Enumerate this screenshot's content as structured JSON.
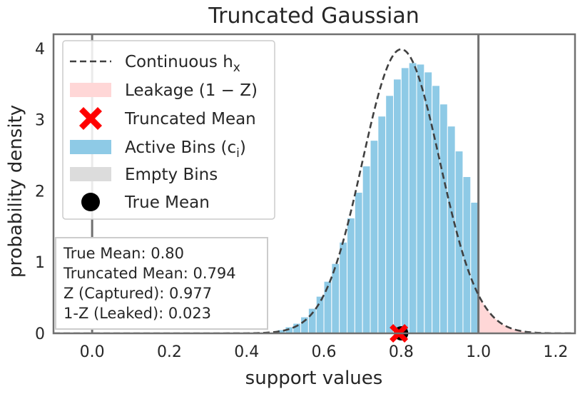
{
  "chart_data": {
    "type": "bar",
    "title": "Truncated Gaussian",
    "xlabel": "support values",
    "ylabel": "probability density",
    "xlim": [
      -0.1,
      1.25
    ],
    "ylim": [
      0,
      4.2
    ],
    "xticks": [
      "0.0",
      "0.2",
      "0.4",
      "0.6",
      "0.8",
      "1.0",
      "1.2"
    ],
    "xtick_values": [
      0.0,
      0.2,
      0.4,
      0.6,
      0.8,
      1.0,
      1.2
    ],
    "yticks": [
      "0",
      "1",
      "2",
      "3",
      "4"
    ],
    "ytick_values": [
      0,
      1,
      2,
      3,
      4
    ],
    "grid": false,
    "legend_position": "upper-left",
    "bounds": [
      0.0,
      1.0
    ],
    "bin_width": 0.02,
    "active_bins": {
      "x": [
        0.49,
        0.51,
        0.53,
        0.55,
        0.57,
        0.59,
        0.61,
        0.63,
        0.65,
        0.67,
        0.69,
        0.71,
        0.73,
        0.75,
        0.77,
        0.79,
        0.81,
        0.83,
        0.85,
        0.87,
        0.89,
        0.91,
        0.93,
        0.95,
        0.97,
        0.99
      ],
      "values": [
        0.05,
        0.09,
        0.14,
        0.23,
        0.35,
        0.52,
        0.73,
        0.98,
        1.28,
        1.62,
        1.98,
        2.35,
        2.71,
        3.05,
        3.34,
        3.57,
        3.73,
        3.8,
        3.78,
        3.67,
        3.48,
        3.22,
        2.91,
        2.56,
        2.2,
        1.84
      ]
    },
    "gaussian": {
      "mean": 0.8,
      "std": 0.1,
      "peak": 3.99
    },
    "leakage_region": [
      1.0,
      1.25
    ],
    "true_mean": {
      "x": 0.8,
      "y": 0
    },
    "truncated_mean": {
      "x": 0.794,
      "y": 0
    },
    "legend": [
      {
        "label": "Continuous h",
        "label_sub": "x",
        "marker": "dashed-line",
        "color": "#404040"
      },
      {
        "label": "Leakage (1 − Z)",
        "marker": "patch",
        "color": "#ffd7d7"
      },
      {
        "label": "Truncated Mean",
        "marker": "x",
        "color": "#ff0000"
      },
      {
        "label": "Active Bins (c",
        "label_sub": "i",
        "label_tail": ")",
        "marker": "patch",
        "color": "#8ecae6"
      },
      {
        "label": "Empty Bins",
        "marker": "patch",
        "color": "#dcdcdc"
      },
      {
        "label": "True Mean",
        "marker": "circle",
        "color": "#000000"
      }
    ],
    "stats": [
      "True Mean: 0.80",
      "Truncated Mean: 0.794",
      "Z (Captured): 0.977",
      "1-Z (Leaked): 0.023"
    ],
    "colors": {
      "bins": "#8ecae6",
      "leak": "#ffd7d7",
      "curve": "#404040",
      "bound_lines": "#707070",
      "axes": "#707070",
      "text": "#262626"
    }
  }
}
